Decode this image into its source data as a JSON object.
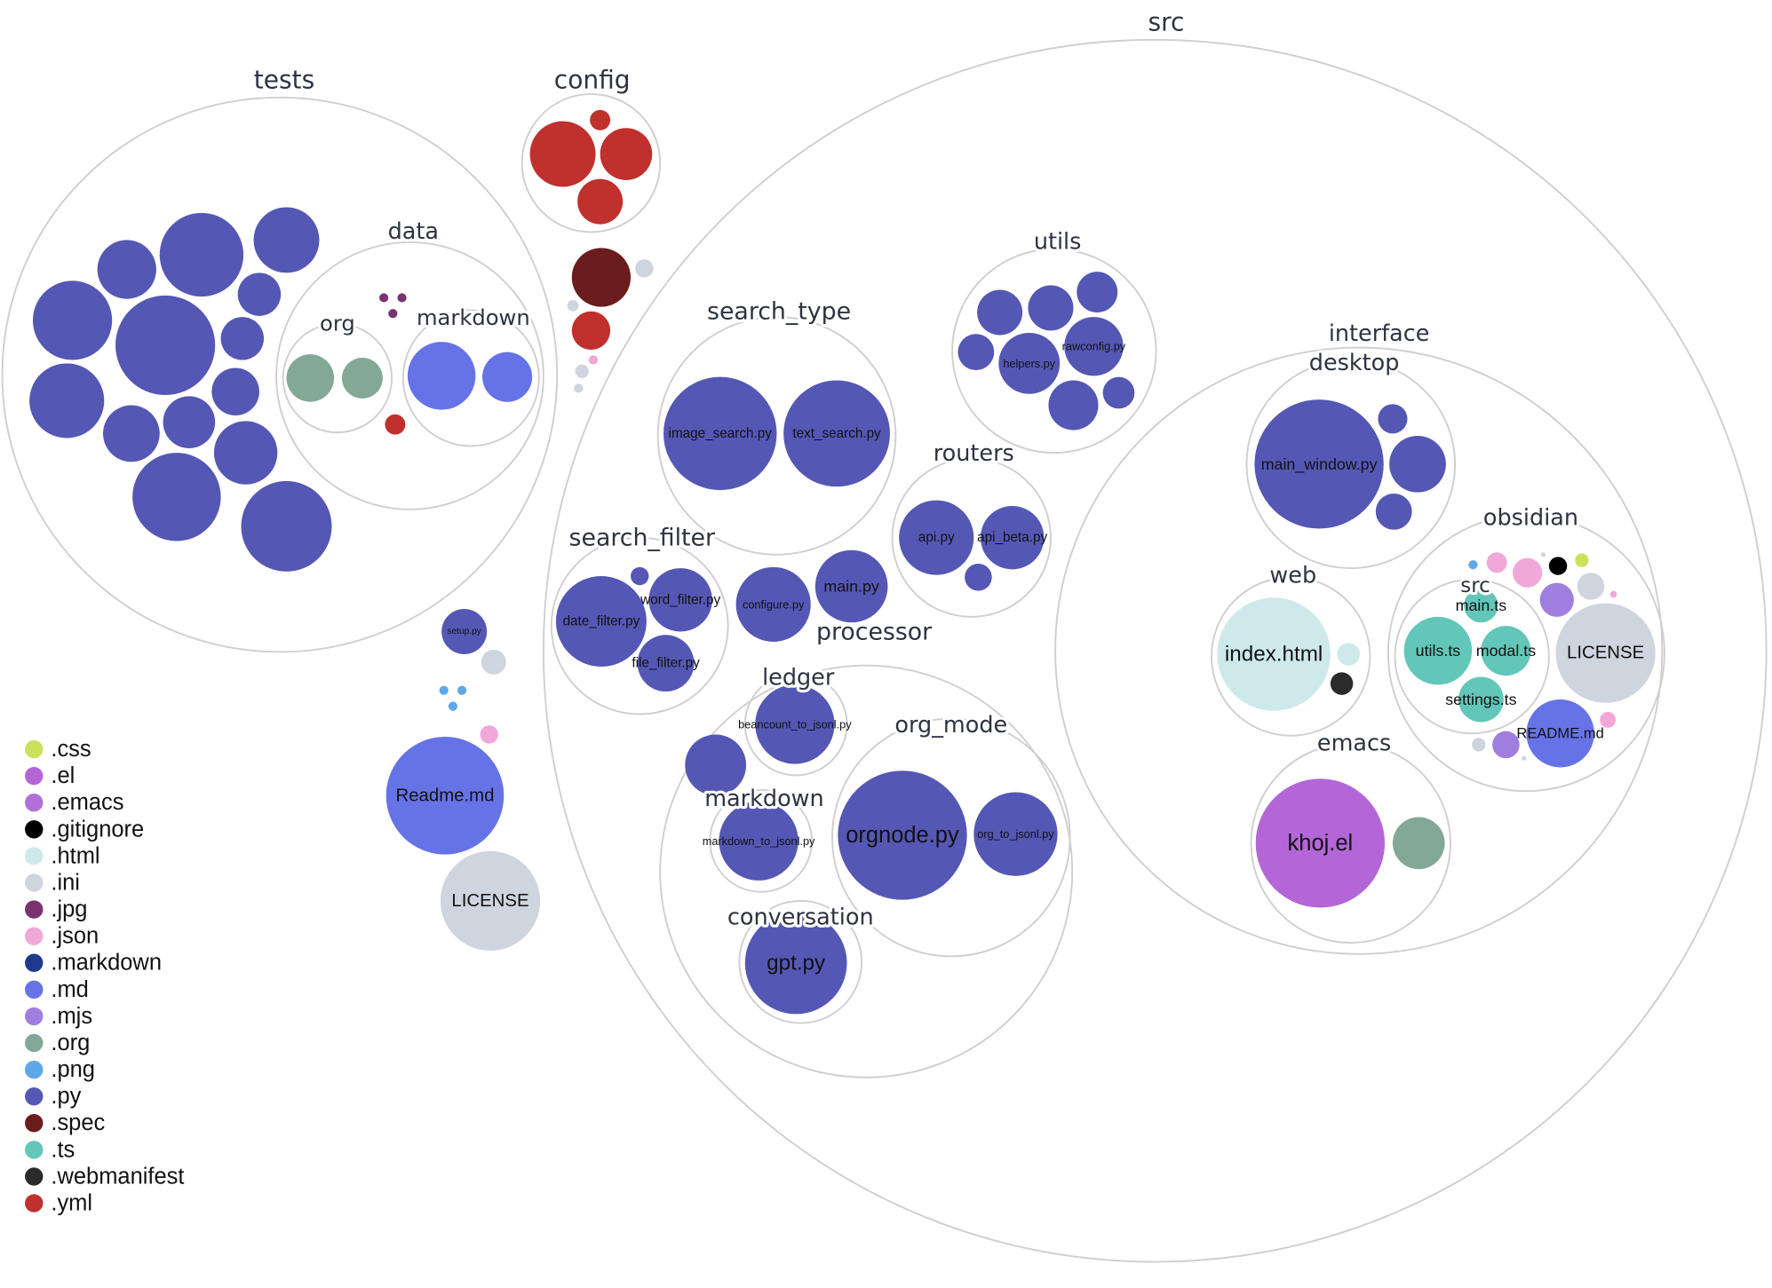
{
  "folders": {
    "tests": "tests",
    "data": "data",
    "org": "org",
    "markdown": "markdown",
    "config": "config",
    "src": "src",
    "utils": "utils",
    "search_type": "search_type",
    "routers": "routers",
    "search_filter": "search_filter",
    "processor": "processor",
    "ledger": "ledger",
    "markdown2": "markdown",
    "org_mode": "org_mode",
    "conversation": "conversation",
    "interface": "interface",
    "desktop": "desktop",
    "web": "web",
    "obsidian": "obsidian",
    "src2": "src",
    "emacs": "emacs"
  },
  "files": {
    "helpers": "helpers.py",
    "rawconfig": "rawconfig.py",
    "image_search": "image_search.py",
    "text_search": "text_search.py",
    "api": "api.py",
    "api_beta": "api_beta.py",
    "date_filter": "date_filter.py",
    "word_filter": "word_filter.py",
    "file_filter": "file_filter.py",
    "configure": "configure.py",
    "main": "main.py",
    "beancount": "beancount_to_jsonl.py",
    "markdown_to_jsonl": "markdown_to_jsonl.py",
    "orgnode": "orgnode.py",
    "org_to_jsonl": "org_to_jsonl.py",
    "gpt": "gpt.py",
    "main_window": "main_window.py",
    "index_html": "index.html",
    "main_ts": "main.ts",
    "utils_ts": "utils.ts",
    "modal_ts": "modal.ts",
    "settings_ts": "settings.ts",
    "license_obs": "LICENSE",
    "readme_obs": "README.md",
    "khoj_el": "khoj.el",
    "setup": "setup.py",
    "readme_root": "Readme.md",
    "license_root": "LICENSE"
  },
  "colors": {
    "css": "#cce05c",
    "el": "#b466d8",
    "emacs": "#b070d8",
    "gitignore": "#000000",
    "html": "#cde9ec",
    "ini": "#cfd5de",
    "jpg": "#7a3370",
    "json": "#f0a8d8",
    "markdown": "#1e3a8a",
    "md": "#6673e6",
    "mjs": "#a07ee0",
    "org": "#84a898",
    "png": "#5ea8ea",
    "py": "#5557b5",
    "spec": "#6b1d1d",
    "ts": "#62c6b8",
    "webmanifest": "#2b2b2b",
    "yml": "#c0302d"
  },
  "legend": [
    {
      "label": ".css",
      "color": "#cce05c"
    },
    {
      "label": ".el",
      "color": "#b466d8"
    },
    {
      "label": ".emacs",
      "color": "#b070d8"
    },
    {
      "label": ".gitignore",
      "color": "#000000"
    },
    {
      "label": ".html",
      "color": "#cde9ec"
    },
    {
      "label": ".ini",
      "color": "#cfd5de"
    },
    {
      "label": ".jpg",
      "color": "#7a3370"
    },
    {
      "label": ".json",
      "color": "#f0a8d8"
    },
    {
      "label": ".markdown",
      "color": "#1e3a8a"
    },
    {
      "label": ".md",
      "color": "#6673e6"
    },
    {
      "label": ".mjs",
      "color": "#a07ee0"
    },
    {
      "label": ".org",
      "color": "#84a898"
    },
    {
      "label": ".png",
      "color": "#5ea8ea"
    },
    {
      "label": ".py",
      "color": "#5557b5"
    },
    {
      "label": ".spec",
      "color": "#6b1d1d"
    },
    {
      "label": ".ts",
      "color": "#62c6b8"
    },
    {
      "label": ".webmanifest",
      "color": "#2b2b2b"
    },
    {
      "label": ".yml",
      "color": "#c0302d"
    }
  ]
}
